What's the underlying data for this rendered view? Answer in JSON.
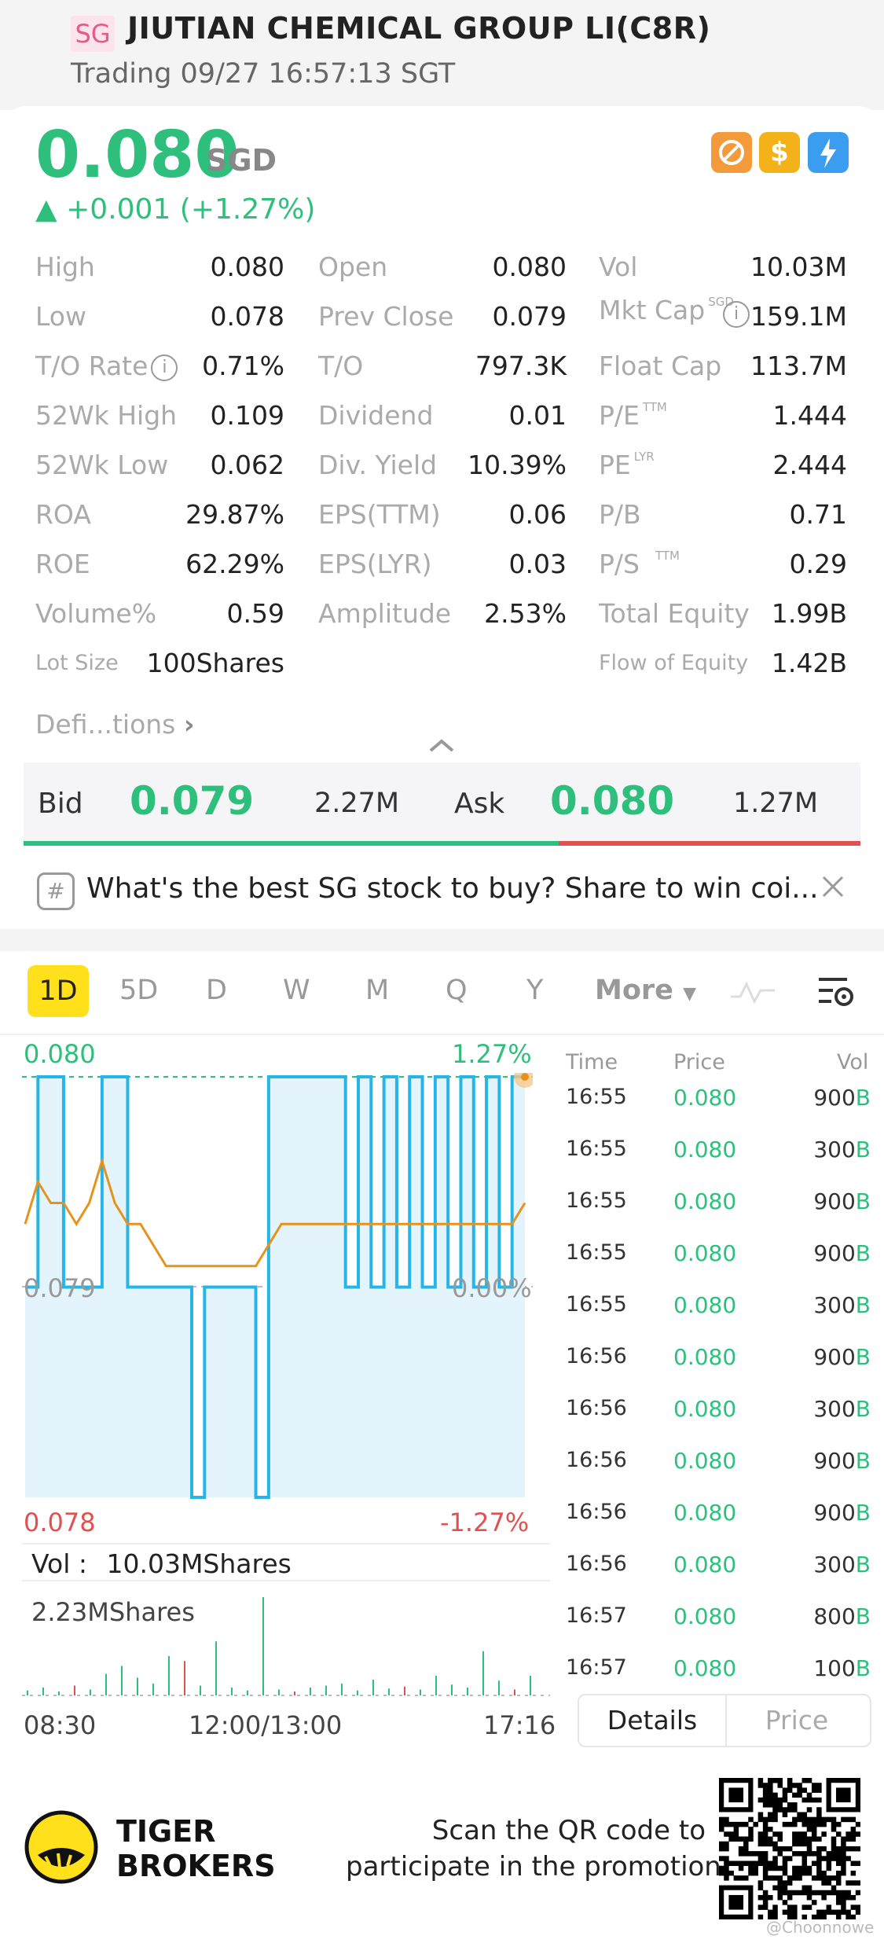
{
  "header": {
    "market_badge": "SG",
    "title": "JIUTIAN CHEMICAL GROUP LI(C8R)",
    "status": "Trading 09/27 16:57:13 SGT"
  },
  "quote": {
    "price": "0.080",
    "currency": "SGD",
    "change": "▲ +0.001 (+1.27%)",
    "colors": {
      "up": "#2fbf7d",
      "down": "#e05252",
      "accent": "#ffe01b"
    }
  },
  "stats": {
    "col1": [
      {
        "label": "High",
        "value": "0.080"
      },
      {
        "label": "Low",
        "value": "0.078"
      },
      {
        "label": "T/O Rate",
        "value": "0.71%"
      },
      {
        "label": "52Wk High",
        "value": "0.109"
      },
      {
        "label": "52Wk Low",
        "value": "0.062"
      },
      {
        "label": "ROA",
        "value": "29.87%"
      },
      {
        "label": "ROE",
        "value": "62.29%"
      },
      {
        "label": "Volume%",
        "value": "0.59"
      },
      {
        "label": "Lot Size",
        "value": "100Shares"
      }
    ],
    "col2": [
      {
        "label": "Open",
        "value": "0.080"
      },
      {
        "label": "Prev Close",
        "value": "0.079"
      },
      {
        "label": "T/O",
        "value": "797.3K"
      },
      {
        "label": "Dividend",
        "value": "0.01"
      },
      {
        "label": "Div. Yield",
        "value": "10.39%"
      },
      {
        "label": "EPS(TTM)",
        "value": "0.06"
      },
      {
        "label": "EPS(LYR)",
        "value": "0.03"
      },
      {
        "label": "Amplitude",
        "value": "2.53%"
      }
    ],
    "col3": [
      {
        "label": "Vol",
        "value": "10.03M"
      },
      {
        "label": "Mkt Cap",
        "value": "159.1M",
        "sup": "SGD"
      },
      {
        "label": "Float Cap",
        "value": "113.7M"
      },
      {
        "label": "P/E",
        "value": "1.444",
        "sup": "TTM"
      },
      {
        "label": "PE",
        "value": "2.444",
        "sup": "LYR"
      },
      {
        "label": "P/B",
        "value": "0.71"
      },
      {
        "label": "P/S",
        "value": "0.29",
        "sup": "TTM"
      },
      {
        "label": "Total Equity",
        "value": "1.99B"
      },
      {
        "label": "Flow of Equity",
        "value": "1.42B"
      }
    ],
    "definitions_link": "Defi...tions"
  },
  "bidask": {
    "bid_label": "Bid",
    "bid_price": "0.079",
    "bid_size": "2.27M",
    "ask_label": "Ask",
    "ask_price": "0.080",
    "ask_size": "1.27M"
  },
  "banner": {
    "text": "What's the best SG stock to buy? Share to win coi..."
  },
  "tabs": {
    "active": "1D",
    "items": [
      "5D",
      "D",
      "W",
      "M",
      "Q",
      "Y"
    ],
    "more": "More"
  },
  "chart_data": {
    "type": "line",
    "x_labels": [
      "08:30",
      "12:00/13:00",
      "17:16"
    ],
    "y_high": "0.080",
    "y_mid": "0.079",
    "y_low": "0.078",
    "pct_high": "1.27%",
    "pct_mid": "0.00%",
    "pct_low": "-1.27%",
    "ylim": [
      0.078,
      0.08
    ],
    "series": [
      {
        "values": [
          0.079,
          0.08,
          0.08,
          0.079,
          0.079,
          0.079,
          0.08,
          0.08,
          0.079,
          0.079,
          0.079,
          0.079,
          0.079,
          0.078,
          0.079,
          0.079,
          0.079,
          0.079,
          0.078,
          0.08,
          0.08,
          0.08,
          0.08,
          0.08,
          0.08,
          0.079,
          0.08,
          0.079,
          0.08,
          0.079,
          0.08,
          0.079,
          0.08,
          0.079,
          0.08,
          0.079,
          0.08,
          0.079,
          0.08,
          0.08
        ]
      },
      {
        "values": [
          0.0793,
          0.0795,
          0.0794,
          0.0794,
          0.0793,
          0.0794,
          0.0796,
          0.0794,
          0.0793,
          0.0793,
          0.0792,
          0.0791,
          0.0791,
          0.0791,
          0.0791,
          0.0791,
          0.0791,
          0.0791,
          0.0791,
          0.0792,
          0.0793,
          0.0793,
          0.0793,
          0.0793,
          0.0793,
          0.0793,
          0.0793,
          0.0793,
          0.0793,
          0.0793,
          0.0793,
          0.0793,
          0.0793,
          0.0793,
          0.0793,
          0.0793,
          0.0793,
          0.0793,
          0.0793,
          0.0794
        ]
      }
    ],
    "volume_label": "Vol :",
    "volume_value": "10.03MShares",
    "volume_max": "2.23MShares",
    "volume_bars": [
      0.05,
      0.08,
      0.04,
      0.1,
      0.06,
      0.22,
      0.3,
      0.18,
      0.12,
      0.4,
      0.35,
      0.1,
      0.55,
      0.08,
      0.05,
      1.0,
      0.06,
      0.04,
      0.08,
      0.1,
      0.12,
      0.05,
      0.16,
      0.07,
      0.09,
      0.06,
      0.2,
      0.11,
      0.08,
      0.45,
      0.15,
      0.06,
      0.2
    ]
  },
  "ticks": {
    "headers": {
      "time": "Time",
      "price": "Price",
      "vol": "Vol"
    },
    "rows": [
      {
        "time": "16:55",
        "price": "0.080",
        "vol": "900",
        "side": "B"
      },
      {
        "time": "16:55",
        "price": "0.080",
        "vol": "300",
        "side": "B"
      },
      {
        "time": "16:55",
        "price": "0.080",
        "vol": "900",
        "side": "B"
      },
      {
        "time": "16:55",
        "price": "0.080",
        "vol": "900",
        "side": "B"
      },
      {
        "time": "16:55",
        "price": "0.080",
        "vol": "300",
        "side": "B"
      },
      {
        "time": "16:56",
        "price": "0.080",
        "vol": "900",
        "side": "B"
      },
      {
        "time": "16:56",
        "price": "0.080",
        "vol": "300",
        "side": "B"
      },
      {
        "time": "16:56",
        "price": "0.080",
        "vol": "900",
        "side": "B"
      },
      {
        "time": "16:56",
        "price": "0.080",
        "vol": "900",
        "side": "B"
      },
      {
        "time": "16:56",
        "price": "0.080",
        "vol": "300",
        "side": "B"
      },
      {
        "time": "16:57",
        "price": "0.080",
        "vol": "800",
        "side": "B"
      },
      {
        "time": "16:57",
        "price": "0.080",
        "vol": "100",
        "side": "B"
      }
    ],
    "details_tab": "Details",
    "price_tab": "Price"
  },
  "footer": {
    "brand_line1": "TIGER",
    "brand_line2": "BROKERS",
    "promo_line1": "Scan the QR code to",
    "promo_line2": "participate in the promotion",
    "watermark": "@Choonnowe"
  }
}
